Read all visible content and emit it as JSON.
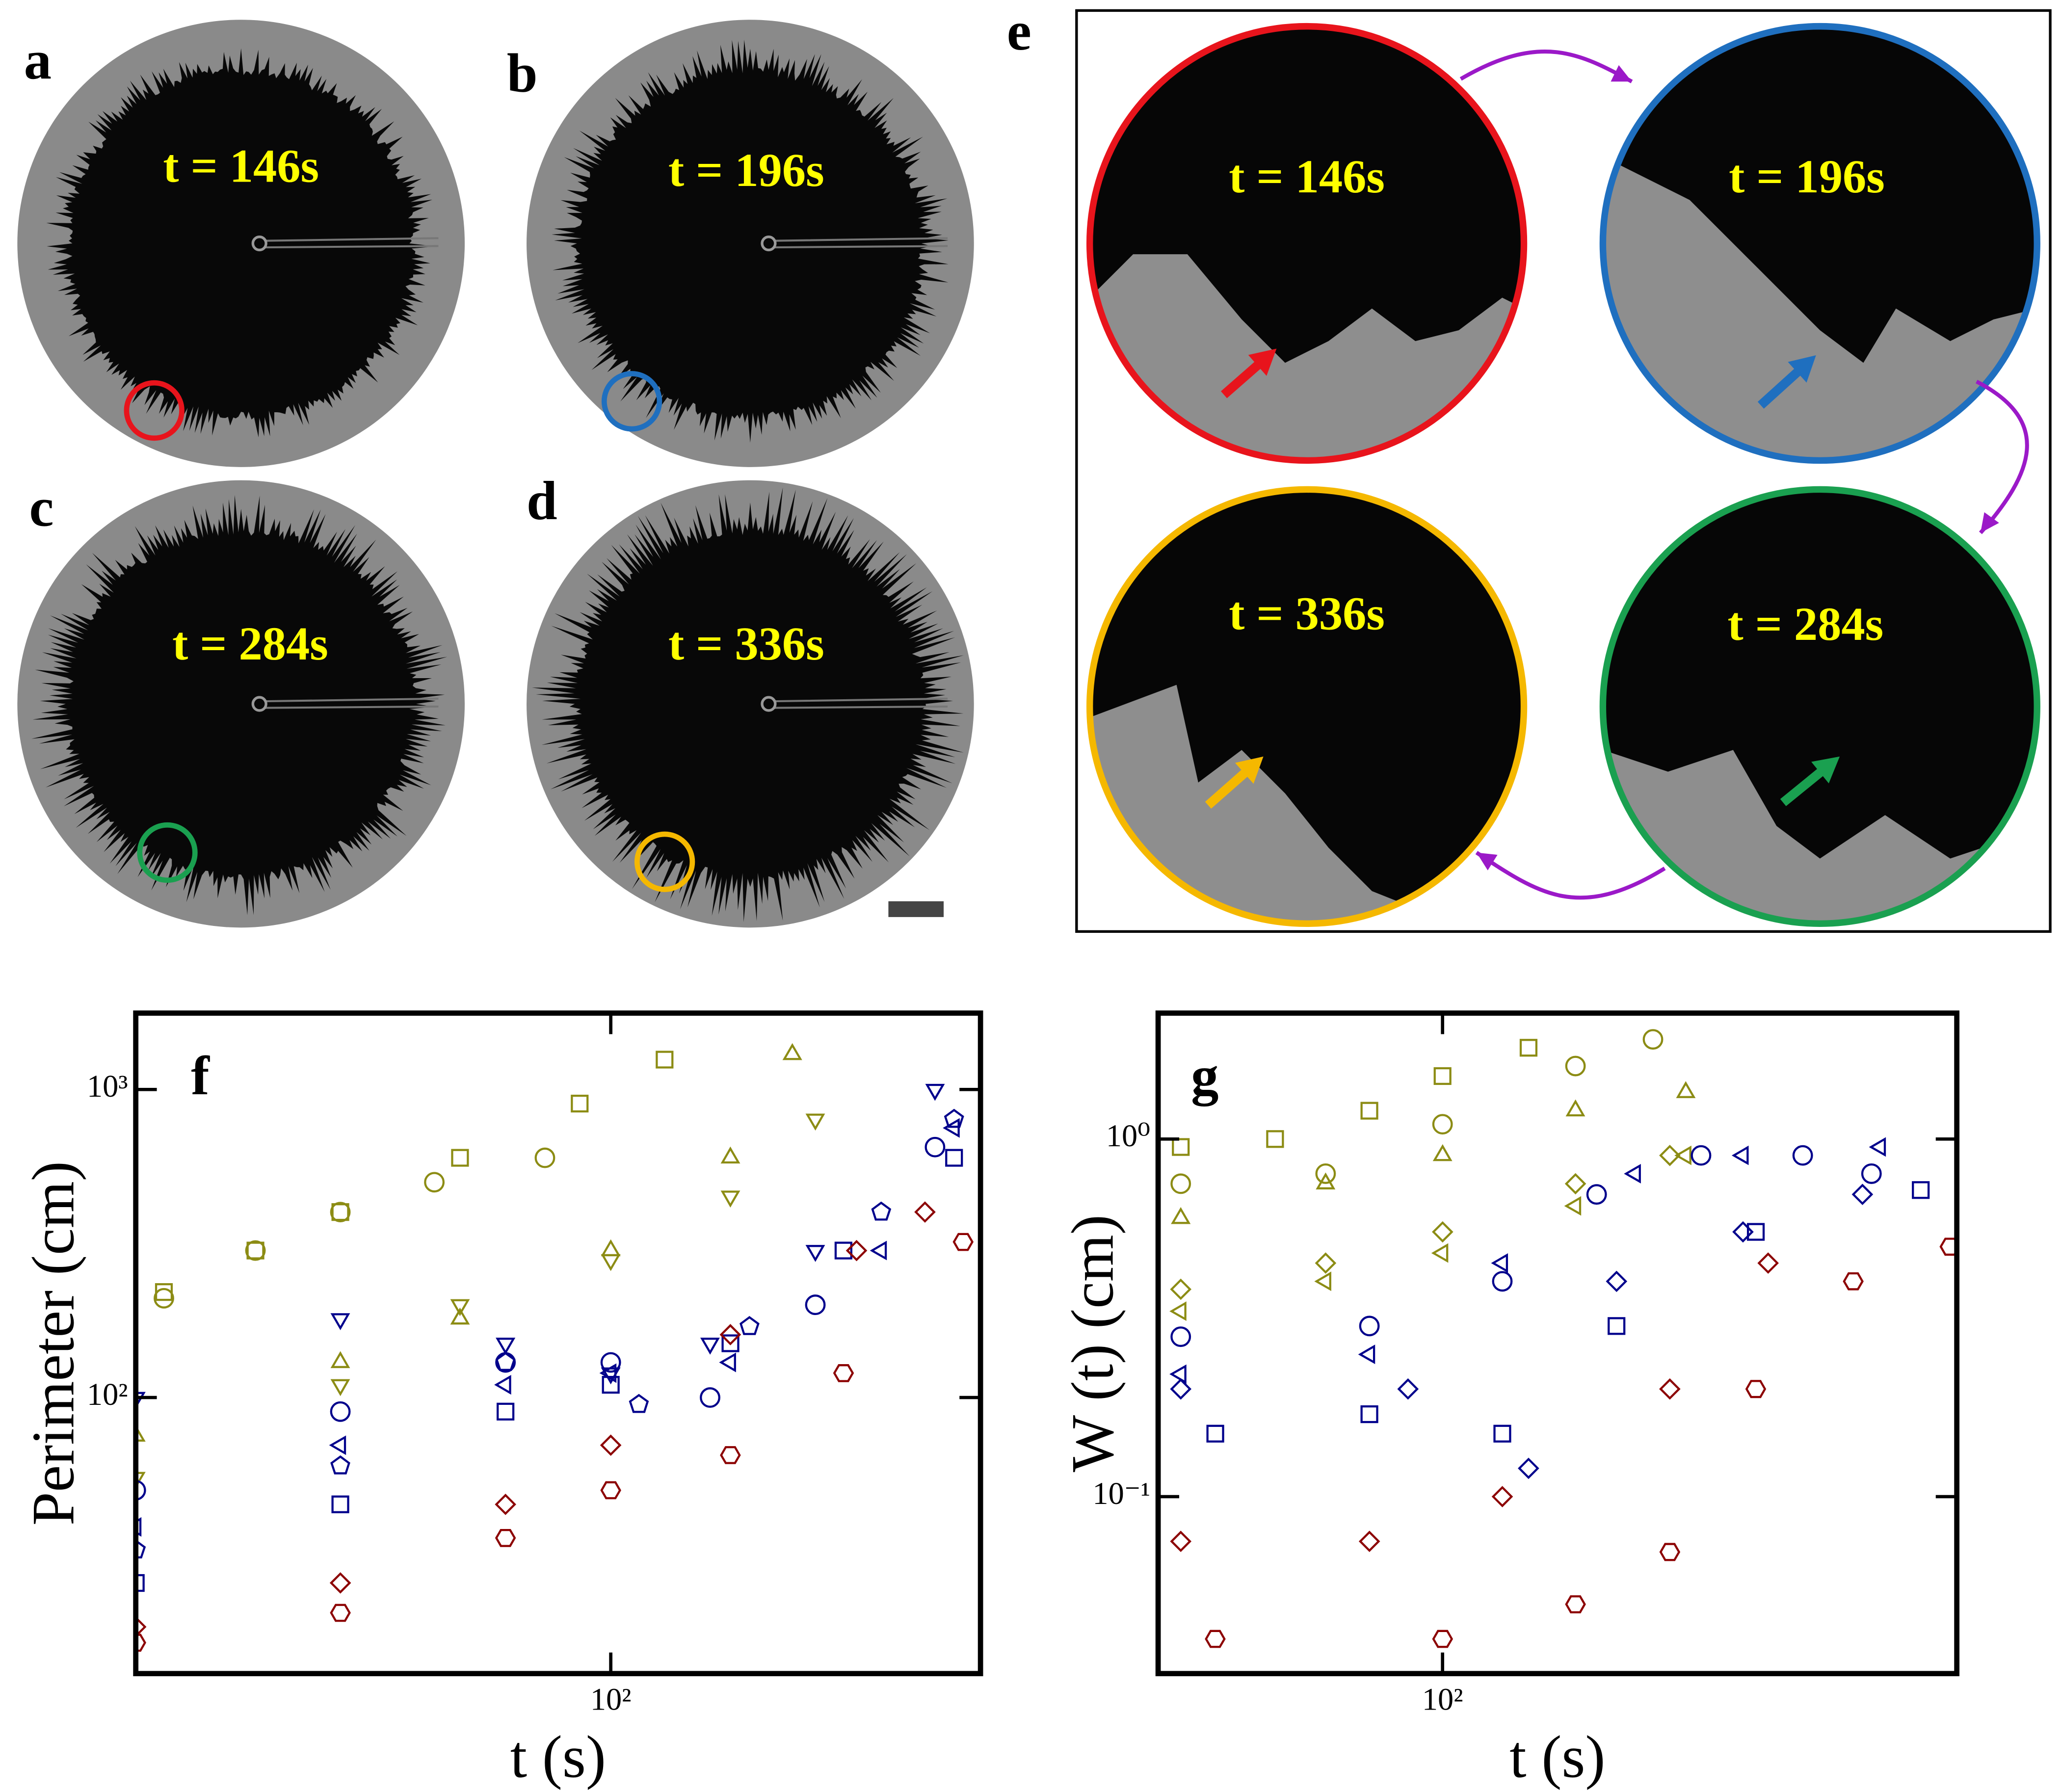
{
  "images": [
    {
      "letter": "a",
      "time": "t = 146s"
    },
    {
      "letter": "b",
      "time": "t = 196s"
    },
    {
      "letter": "c",
      "time": "t = 284s"
    },
    {
      "letter": "d",
      "time": "t = 336s"
    }
  ],
  "zoom": {
    "letter": "e",
    "times": [
      "t = 146s",
      "t = 196s",
      "t = 336s",
      "t = 284s"
    ]
  },
  "chart_data": [
    {
      "type": "scatter",
      "letter": "f",
      "xlabel": "t (s)",
      "ylabel": "Perimeter (cm)",
      "xscale": "log",
      "yscale": "log",
      "xlim": [
        20,
        350
      ],
      "ylim": [
        12.7,
        1770
      ],
      "xticks": [
        {
          "value": 100,
          "label": "10²"
        }
      ],
      "yticks": [
        {
          "value": 100,
          "label": "10²"
        },
        {
          "value": 1000,
          "label": "10³"
        }
      ],
      "series": [
        {
          "color": "#8c8c14",
          "marker": "square",
          "x": [
            22,
            30,
            40,
            60,
            90,
            120
          ],
          "values": [
            220,
            300,
            400,
            600,
            900,
            1250
          ]
        },
        {
          "color": "#8c8c14",
          "marker": "circle",
          "x": [
            22,
            30,
            40,
            55,
            80
          ],
          "values": [
            210,
            300,
            400,
            500,
            600
          ]
        },
        {
          "color": "#8c8c14",
          "marker": "up",
          "x": [
            20,
            40,
            60,
            100,
            150,
            185
          ],
          "values": [
            75,
            130,
            180,
            300,
            600,
            1300
          ]
        },
        {
          "color": "#8c8c14",
          "marker": "down",
          "x": [
            20,
            40,
            60,
            100,
            150,
            200
          ],
          "values": [
            55,
            110,
            200,
            280,
            450,
            800
          ]
        },
        {
          "color": "#00008c",
          "marker": "down",
          "x": [
            20,
            40,
            70,
            100,
            140,
            200,
            300
          ],
          "values": [
            100,
            180,
            150,
            120,
            150,
            300,
            1000
          ]
        },
        {
          "color": "#00008c",
          "marker": "circle",
          "x": [
            20,
            40,
            70,
            100,
            140,
            200,
            300
          ],
          "values": [
            50,
            90,
            130,
            130,
            100,
            200,
            650
          ]
        },
        {
          "color": "#00008c",
          "marker": "left",
          "x": [
            20,
            40,
            70,
            100,
            150,
            250,
            320
          ],
          "values": [
            38,
            70,
            110,
            120,
            130,
            300,
            750
          ]
        },
        {
          "color": "#00008c",
          "marker": "square",
          "x": [
            20,
            40,
            70,
            100,
            150,
            220,
            320
          ],
          "values": [
            25,
            45,
            90,
            110,
            150,
            300,
            600
          ]
        },
        {
          "color": "#00008c",
          "marker": "pentagon",
          "x": [
            20,
            40,
            70,
            110,
            160,
            250,
            320
          ],
          "values": [
            32,
            60,
            130,
            95,
            170,
            400,
            800
          ]
        },
        {
          "color": "#8c0000",
          "marker": "diamond",
          "x": [
            20,
            40,
            70,
            100,
            150,
            230,
            290
          ],
          "values": [
            18,
            25,
            45,
            70,
            160,
            300,
            400
          ]
        },
        {
          "color": "#8c0000",
          "marker": "hexagon",
          "x": [
            20,
            40,
            70,
            100,
            150,
            220,
            330
          ],
          "values": [
            16,
            20,
            35,
            50,
            65,
            120,
            320
          ]
        }
      ]
    },
    {
      "type": "scatter",
      "letter": "g",
      "xlabel": "t (s)",
      "ylabel": "W (t) (cm)",
      "xscale": "log",
      "yscale": "log",
      "xlim": [
        42,
        480
      ],
      "ylim": [
        0.032,
        2.25
      ],
      "xticks": [
        {
          "value": 100,
          "label": "10²"
        }
      ],
      "yticks": [
        {
          "value": 0.1,
          "label": "10⁻¹"
        },
        {
          "value": 1,
          "label": "10⁰"
        }
      ],
      "series": [
        {
          "color": "#8c8c14",
          "marker": "square",
          "x": [
            45,
            60,
            80,
            100,
            130
          ],
          "values": [
            0.95,
            1.0,
            1.2,
            1.5,
            1.8
          ]
        },
        {
          "color": "#8c8c14",
          "marker": "circle",
          "x": [
            45,
            70,
            100,
            150,
            190
          ],
          "values": [
            0.75,
            0.8,
            1.1,
            1.6,
            1.9
          ]
        },
        {
          "color": "#8c8c14",
          "marker": "up",
          "x": [
            45,
            70,
            100,
            150,
            210
          ],
          "values": [
            0.6,
            0.75,
            0.9,
            1.2,
            1.35
          ]
        },
        {
          "color": "#8c8c14",
          "marker": "diamond",
          "x": [
            45,
            70,
            100,
            150,
            200
          ],
          "values": [
            0.38,
            0.45,
            0.55,
            0.75,
            0.9
          ]
        },
        {
          "color": "#8c8c14",
          "marker": "left",
          "x": [
            45,
            70,
            100,
            150,
            210
          ],
          "values": [
            0.33,
            0.4,
            0.48,
            0.65,
            0.9
          ]
        },
        {
          "color": "#00008c",
          "marker": "circle",
          "x": [
            45,
            80,
            120,
            160,
            220,
            300,
            370
          ],
          "values": [
            0.28,
            0.3,
            0.4,
            0.7,
            0.9,
            0.9,
            0.8
          ]
        },
        {
          "color": "#00008c",
          "marker": "left",
          "x": [
            45,
            80,
            120,
            180,
            250,
            380
          ],
          "values": [
            0.22,
            0.25,
            0.45,
            0.8,
            0.9,
            0.95
          ]
        },
        {
          "color": "#00008c",
          "marker": "diamond",
          "x": [
            45,
            90,
            130,
            170,
            250,
            360
          ],
          "values": [
            0.2,
            0.2,
            0.12,
            0.4,
            0.55,
            0.7
          ]
        },
        {
          "color": "#00008c",
          "marker": "square",
          "x": [
            50,
            80,
            120,
            170,
            260,
            430
          ],
          "values": [
            0.15,
            0.17,
            0.15,
            0.3,
            0.55,
            0.72
          ]
        },
        {
          "color": "#8c0000",
          "marker": "diamond",
          "x": [
            45,
            80,
            120,
            200,
            270
          ],
          "values": [
            0.075,
            0.075,
            0.1,
            0.2,
            0.45
          ]
        },
        {
          "color": "#8c0000",
          "marker": "hexagon",
          "x": [
            50,
            100,
            150,
            200,
            260,
            350,
            470
          ],
          "values": [
            0.04,
            0.04,
            0.05,
            0.07,
            0.2,
            0.4,
            0.5
          ]
        }
      ]
    }
  ]
}
